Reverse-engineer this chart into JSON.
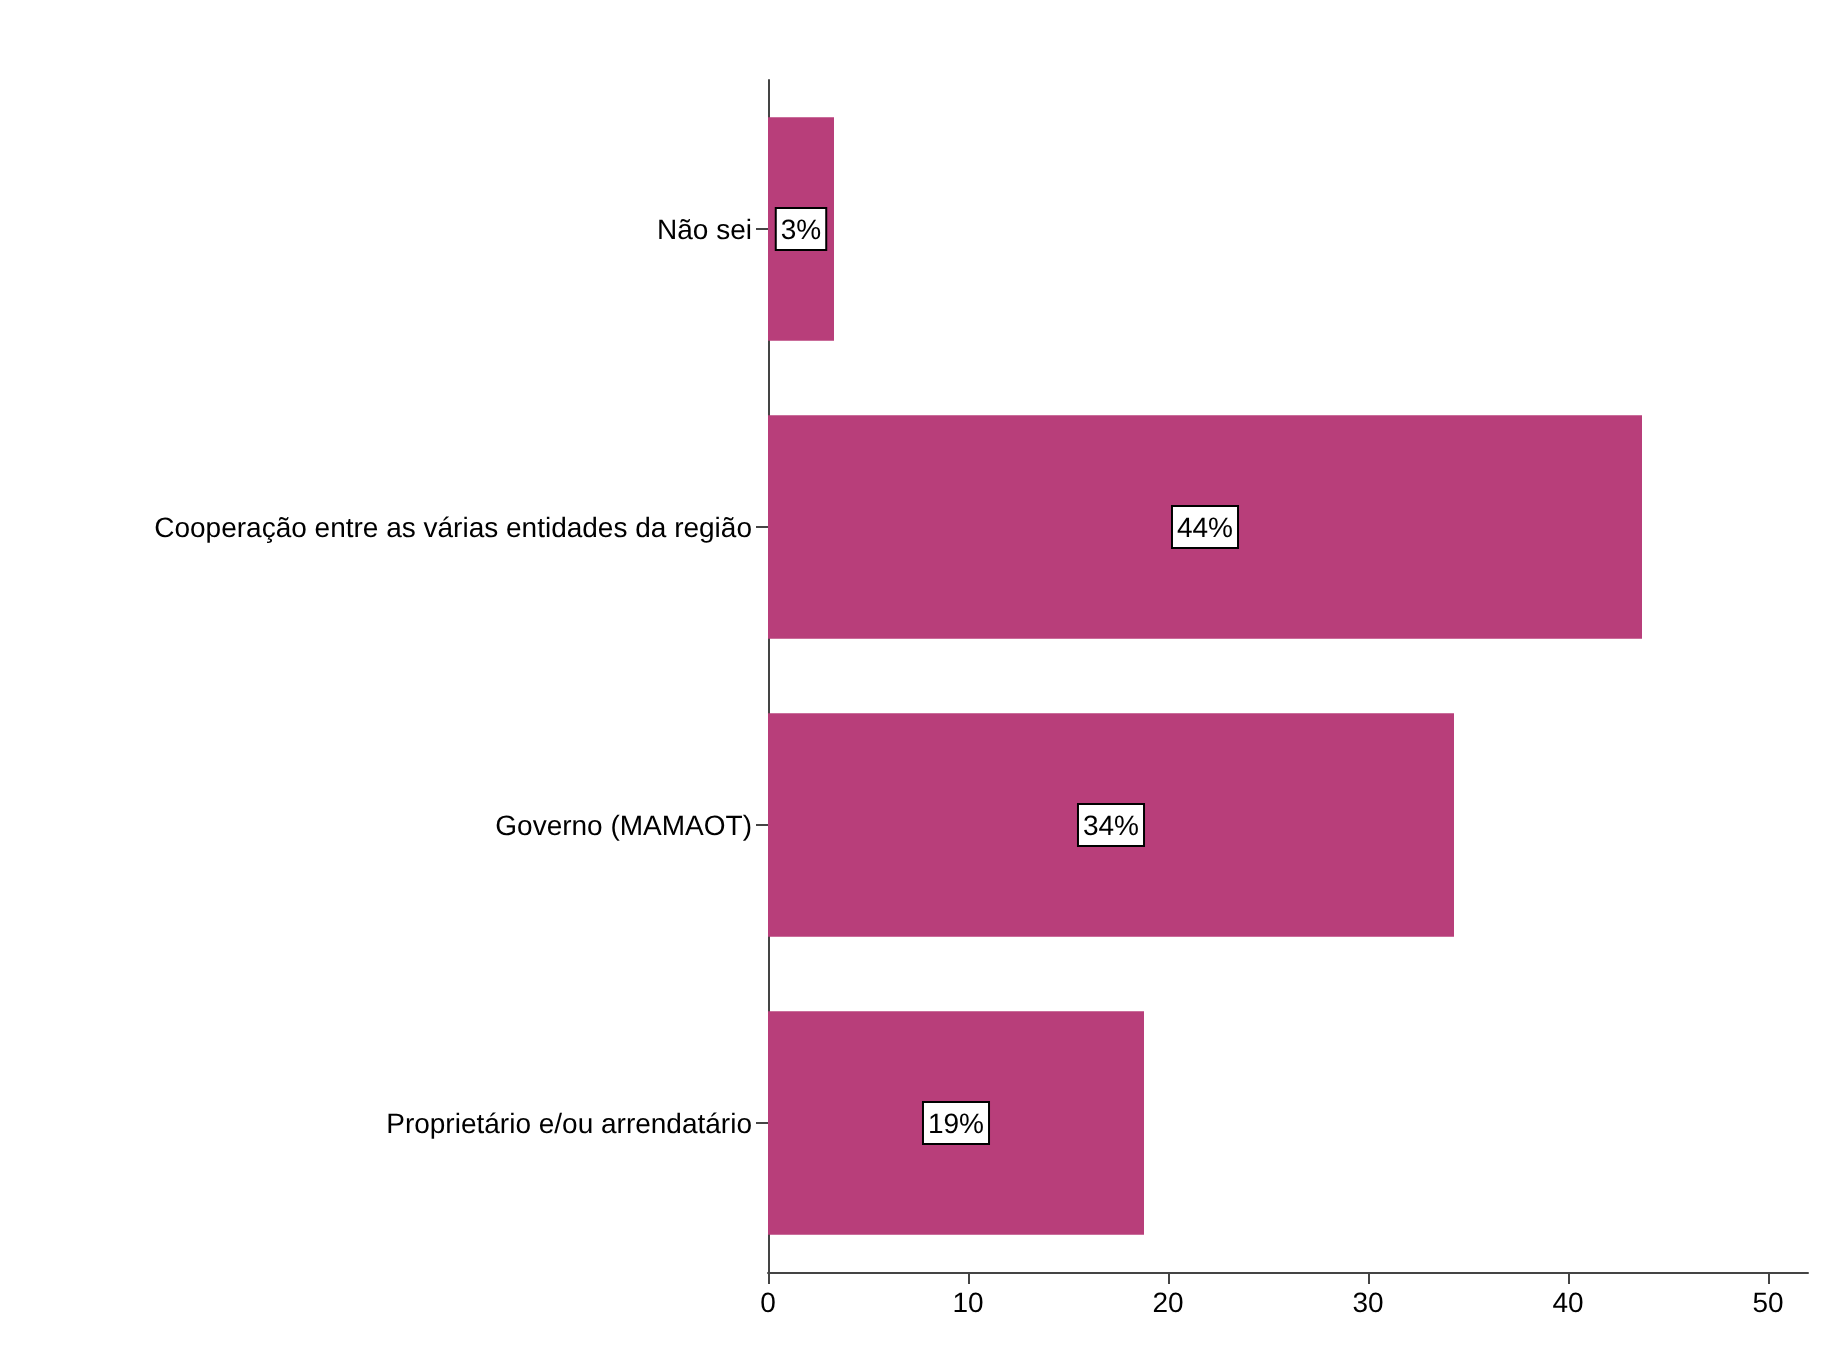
{
  "chart_data": {
    "type": "bar",
    "orientation": "horizontal",
    "categories": [
      "Não sei",
      "Cooperação entre as várias entidades da região",
      "Governo (MAMAOT)",
      "Proprietário e/ou arrendatário"
    ],
    "values": [
      3.3,
      43.7,
      34.3,
      18.8
    ],
    "color": "#b83e7a",
    "value_labels": [
      "3%",
      "44%",
      "34%",
      "19%"
    ],
    "xlim": [
      0,
      52
    ],
    "xticks": [
      0,
      10,
      20,
      30,
      40,
      50
    ],
    "grid": false
  }
}
